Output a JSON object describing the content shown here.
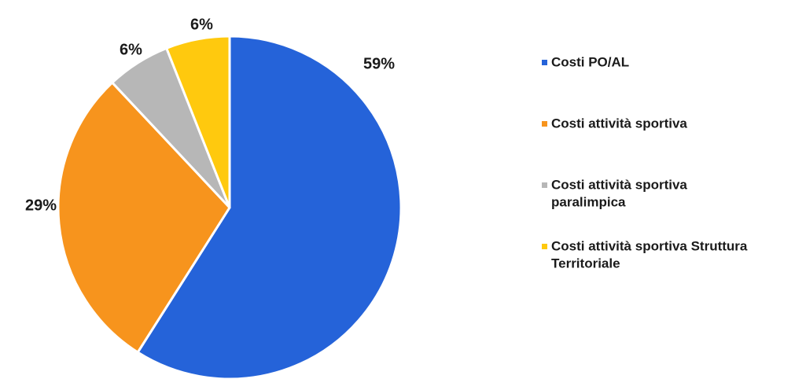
{
  "chart_data": {
    "type": "pie",
    "categories": [
      "Costi PO/AL",
      "Costi attività sportiva",
      "Costi attività sportiva paralimpica",
      "Costi attività sportiva Struttura Territoriale"
    ],
    "values": [
      59,
      29,
      6,
      6
    ],
    "labels": [
      "59%",
      "29%",
      "6%",
      "6%"
    ],
    "legend_lines": [
      [
        "Costi PO/AL"
      ],
      [
        "Costi attività sportiva"
      ],
      [
        "Costi attività sportiva",
        "paralimpica"
      ],
      [
        "Costi attività sportiva Struttura",
        "Territoriale"
      ]
    ],
    "colors": [
      "#2563d9",
      "#f7941d",
      "#b7b7b7",
      "#ffc90e"
    ],
    "start_angle_deg": 0,
    "direction": "clockwise",
    "legend_position": "right"
  }
}
